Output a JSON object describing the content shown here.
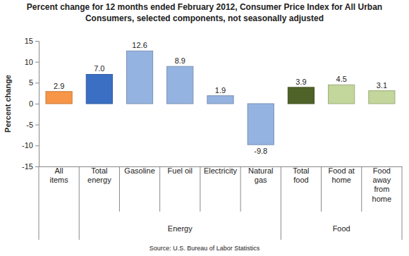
{
  "chart_data": {
    "type": "bar",
    "title": "Percent change for 12 months ended February 2012, Consumer Price Index for All Urban Consumers, selected components, not seasonally adjusted",
    "y_label": "Percent change",
    "source": "Source: U.S. Bureau of Labor Statistics",
    "categories": [
      "All items",
      "Total energy",
      "Gasoline",
      "Fuel oil",
      "Electricity",
      "Natural gas",
      "Total food",
      "Food at home",
      "Food away from home"
    ],
    "values": [
      2.9,
      7.0,
      12.6,
      8.9,
      1.9,
      -9.8,
      3.9,
      4.5,
      3.1
    ],
    "value_labels": [
      "2.9",
      "7.0",
      "12.6",
      "8.9",
      "1.9",
      "-9.8",
      "3.9",
      "4.5",
      "3.1"
    ],
    "colors": [
      "#f79646",
      "#3a6fc4",
      "#95b3e0",
      "#95b3e0",
      "#95b3e0",
      "#95b3e0",
      "#4f6228",
      "#c3d69b",
      "#c3d69b"
    ],
    "groups": [
      {
        "name": "Energy",
        "start": 1,
        "end": 5
      },
      {
        "name": "Food",
        "start": 6,
        "end": 8
      }
    ],
    "ylim": [
      -15,
      15
    ],
    "yticks": [
      -15,
      -10,
      -5,
      0,
      5,
      10,
      15
    ],
    "grid": false,
    "data_labels": true
  }
}
